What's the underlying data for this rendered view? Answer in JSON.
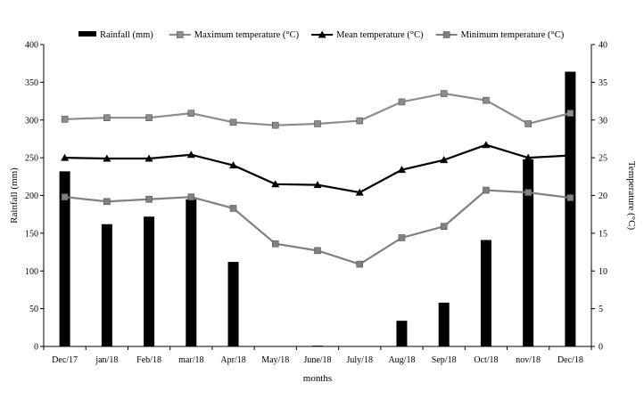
{
  "chart_data": {
    "type": "bar+line",
    "categories": [
      "Dec/17",
      "jan/18",
      "Feb/18",
      "mar/18",
      "Apr/18",
      "May/18",
      "June/18",
      "July/18",
      "Aug/18",
      "Sep/18",
      "Oct/18",
      "nov/18",
      "Dec/18"
    ],
    "bar_series": {
      "name": "Rainfall (mm)",
      "axis": "left",
      "color": "#000000",
      "values": [
        232,
        162,
        172,
        195,
        112,
        0,
        1,
        0,
        34,
        58,
        141,
        248,
        364
      ]
    },
    "line_series": [
      {
        "name": "Maximum temperature (°C)",
        "axis": "right",
        "color": "#8c8c8c",
        "marker": "square",
        "values": [
          30.1,
          30.3,
          30.3,
          30.9,
          29.7,
          29.3,
          29.5,
          29.9,
          32.4,
          33.5,
          32.6,
          29.5,
          30.9
        ]
      },
      {
        "name": "Mean temperature (°C)",
        "axis": "right",
        "color": "#000000",
        "marker": "triangle",
        "values": [
          25.0,
          24.9,
          24.9,
          25.4,
          24.0,
          21.5,
          21.4,
          20.4,
          23.4,
          24.7,
          26.7,
          25.0,
          25.3
        ]
      },
      {
        "name": "Minimum temperature (°C)",
        "axis": "right",
        "color": "#808080",
        "marker": "square",
        "values": [
          19.8,
          19.2,
          19.5,
          19.8,
          18.3,
          13.6,
          12.7,
          10.9,
          14.4,
          15.9,
          20.7,
          20.4,
          19.7
        ]
      }
    ],
    "xlabel": "months",
    "ylabel_left": "Rainfall (mm)",
    "ylabel_right": "Temperature (°C)",
    "ylim_left": [
      0,
      400
    ],
    "ylim_right": [
      0,
      40
    ],
    "yticks_left": [
      "0",
      "50",
      "100",
      "150",
      "200",
      "250",
      "300",
      "350",
      "400"
    ],
    "yticks_right": [
      "0",
      "5",
      "10",
      "15",
      "20",
      "25",
      "30",
      "35",
      "40"
    ],
    "grid": false,
    "legend_position": "top"
  }
}
